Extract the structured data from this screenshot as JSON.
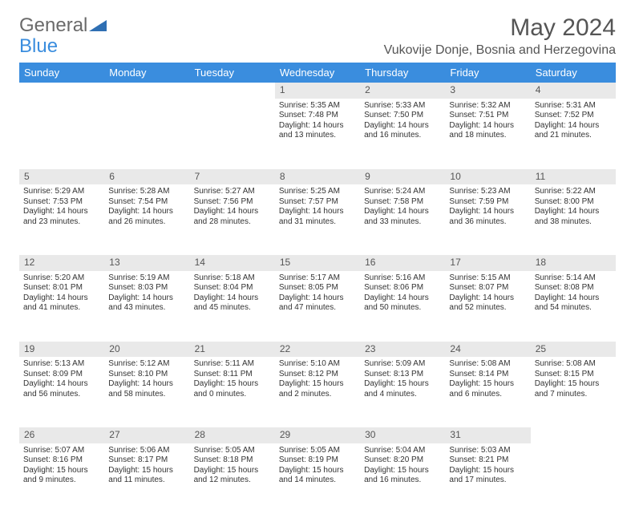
{
  "logo": {
    "part1": "General",
    "part2": "Blue"
  },
  "title": "May 2024",
  "location": "Vukovije Donje, Bosnia and Herzegovina",
  "colors": {
    "header_bg": "#3a8dde",
    "header_text": "#ffffff",
    "daynum_bg": "#e9e9e9",
    "body_text": "#333333",
    "title_text": "#555555",
    "page_bg": "#ffffff"
  },
  "weekdays": [
    "Sunday",
    "Monday",
    "Tuesday",
    "Wednesday",
    "Thursday",
    "Friday",
    "Saturday"
  ],
  "weeks": [
    {
      "nums": [
        "",
        "",
        "",
        "1",
        "2",
        "3",
        "4"
      ],
      "cells": [
        null,
        null,
        null,
        {
          "sunrise": "Sunrise: 5:35 AM",
          "sunset": "Sunset: 7:48 PM",
          "d1": "Daylight: 14 hours",
          "d2": "and 13 minutes."
        },
        {
          "sunrise": "Sunrise: 5:33 AM",
          "sunset": "Sunset: 7:50 PM",
          "d1": "Daylight: 14 hours",
          "d2": "and 16 minutes."
        },
        {
          "sunrise": "Sunrise: 5:32 AM",
          "sunset": "Sunset: 7:51 PM",
          "d1": "Daylight: 14 hours",
          "d2": "and 18 minutes."
        },
        {
          "sunrise": "Sunrise: 5:31 AM",
          "sunset": "Sunset: 7:52 PM",
          "d1": "Daylight: 14 hours",
          "d2": "and 21 minutes."
        }
      ]
    },
    {
      "nums": [
        "5",
        "6",
        "7",
        "8",
        "9",
        "10",
        "11"
      ],
      "cells": [
        {
          "sunrise": "Sunrise: 5:29 AM",
          "sunset": "Sunset: 7:53 PM",
          "d1": "Daylight: 14 hours",
          "d2": "and 23 minutes."
        },
        {
          "sunrise": "Sunrise: 5:28 AM",
          "sunset": "Sunset: 7:54 PM",
          "d1": "Daylight: 14 hours",
          "d2": "and 26 minutes."
        },
        {
          "sunrise": "Sunrise: 5:27 AM",
          "sunset": "Sunset: 7:56 PM",
          "d1": "Daylight: 14 hours",
          "d2": "and 28 minutes."
        },
        {
          "sunrise": "Sunrise: 5:25 AM",
          "sunset": "Sunset: 7:57 PM",
          "d1": "Daylight: 14 hours",
          "d2": "and 31 minutes."
        },
        {
          "sunrise": "Sunrise: 5:24 AM",
          "sunset": "Sunset: 7:58 PM",
          "d1": "Daylight: 14 hours",
          "d2": "and 33 minutes."
        },
        {
          "sunrise": "Sunrise: 5:23 AM",
          "sunset": "Sunset: 7:59 PM",
          "d1": "Daylight: 14 hours",
          "d2": "and 36 minutes."
        },
        {
          "sunrise": "Sunrise: 5:22 AM",
          "sunset": "Sunset: 8:00 PM",
          "d1": "Daylight: 14 hours",
          "d2": "and 38 minutes."
        }
      ]
    },
    {
      "nums": [
        "12",
        "13",
        "14",
        "15",
        "16",
        "17",
        "18"
      ],
      "cells": [
        {
          "sunrise": "Sunrise: 5:20 AM",
          "sunset": "Sunset: 8:01 PM",
          "d1": "Daylight: 14 hours",
          "d2": "and 41 minutes."
        },
        {
          "sunrise": "Sunrise: 5:19 AM",
          "sunset": "Sunset: 8:03 PM",
          "d1": "Daylight: 14 hours",
          "d2": "and 43 minutes."
        },
        {
          "sunrise": "Sunrise: 5:18 AM",
          "sunset": "Sunset: 8:04 PM",
          "d1": "Daylight: 14 hours",
          "d2": "and 45 minutes."
        },
        {
          "sunrise": "Sunrise: 5:17 AM",
          "sunset": "Sunset: 8:05 PM",
          "d1": "Daylight: 14 hours",
          "d2": "and 47 minutes."
        },
        {
          "sunrise": "Sunrise: 5:16 AM",
          "sunset": "Sunset: 8:06 PM",
          "d1": "Daylight: 14 hours",
          "d2": "and 50 minutes."
        },
        {
          "sunrise": "Sunrise: 5:15 AM",
          "sunset": "Sunset: 8:07 PM",
          "d1": "Daylight: 14 hours",
          "d2": "and 52 minutes."
        },
        {
          "sunrise": "Sunrise: 5:14 AM",
          "sunset": "Sunset: 8:08 PM",
          "d1": "Daylight: 14 hours",
          "d2": "and 54 minutes."
        }
      ]
    },
    {
      "nums": [
        "19",
        "20",
        "21",
        "22",
        "23",
        "24",
        "25"
      ],
      "cells": [
        {
          "sunrise": "Sunrise: 5:13 AM",
          "sunset": "Sunset: 8:09 PM",
          "d1": "Daylight: 14 hours",
          "d2": "and 56 minutes."
        },
        {
          "sunrise": "Sunrise: 5:12 AM",
          "sunset": "Sunset: 8:10 PM",
          "d1": "Daylight: 14 hours",
          "d2": "and 58 minutes."
        },
        {
          "sunrise": "Sunrise: 5:11 AM",
          "sunset": "Sunset: 8:11 PM",
          "d1": "Daylight: 15 hours",
          "d2": "and 0 minutes."
        },
        {
          "sunrise": "Sunrise: 5:10 AM",
          "sunset": "Sunset: 8:12 PM",
          "d1": "Daylight: 15 hours",
          "d2": "and 2 minutes."
        },
        {
          "sunrise": "Sunrise: 5:09 AM",
          "sunset": "Sunset: 8:13 PM",
          "d1": "Daylight: 15 hours",
          "d2": "and 4 minutes."
        },
        {
          "sunrise": "Sunrise: 5:08 AM",
          "sunset": "Sunset: 8:14 PM",
          "d1": "Daylight: 15 hours",
          "d2": "and 6 minutes."
        },
        {
          "sunrise": "Sunrise: 5:08 AM",
          "sunset": "Sunset: 8:15 PM",
          "d1": "Daylight: 15 hours",
          "d2": "and 7 minutes."
        }
      ]
    },
    {
      "nums": [
        "26",
        "27",
        "28",
        "29",
        "30",
        "31",
        ""
      ],
      "cells": [
        {
          "sunrise": "Sunrise: 5:07 AM",
          "sunset": "Sunset: 8:16 PM",
          "d1": "Daylight: 15 hours",
          "d2": "and 9 minutes."
        },
        {
          "sunrise": "Sunrise: 5:06 AM",
          "sunset": "Sunset: 8:17 PM",
          "d1": "Daylight: 15 hours",
          "d2": "and 11 minutes."
        },
        {
          "sunrise": "Sunrise: 5:05 AM",
          "sunset": "Sunset: 8:18 PM",
          "d1": "Daylight: 15 hours",
          "d2": "and 12 minutes."
        },
        {
          "sunrise": "Sunrise: 5:05 AM",
          "sunset": "Sunset: 8:19 PM",
          "d1": "Daylight: 15 hours",
          "d2": "and 14 minutes."
        },
        {
          "sunrise": "Sunrise: 5:04 AM",
          "sunset": "Sunset: 8:20 PM",
          "d1": "Daylight: 15 hours",
          "d2": "and 16 minutes."
        },
        {
          "sunrise": "Sunrise: 5:03 AM",
          "sunset": "Sunset: 8:21 PM",
          "d1": "Daylight: 15 hours",
          "d2": "and 17 minutes."
        },
        null
      ]
    }
  ]
}
